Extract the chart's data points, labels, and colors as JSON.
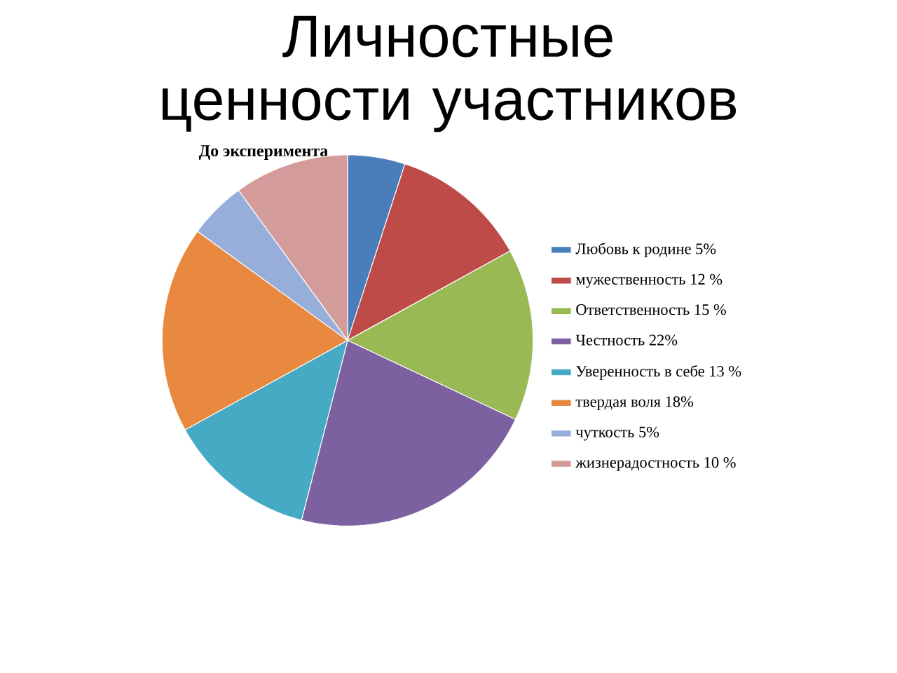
{
  "chart_data": {
    "type": "pie",
    "title": "Личностные ценности участников",
    "subtitle": "До эксперимента",
    "categories": [
      "Любовь к родине 5%",
      "мужественность 12 %",
      "Ответственность 15 %",
      "Честность 22%",
      "Уверенность в себе 13 %",
      "твердая воля 18%",
      "чуткость 5%",
      "жизнерадостность 10 %"
    ],
    "values": [
      5,
      12,
      15,
      22,
      13,
      18,
      5,
      10
    ],
    "colors": [
      "#4a7ebb",
      "#be4b48",
      "#98b954",
      "#7d60a0",
      "#46aac5",
      "#e8893f",
      "#97aedb",
      "#d39c9b"
    ],
    "legend": "right"
  }
}
